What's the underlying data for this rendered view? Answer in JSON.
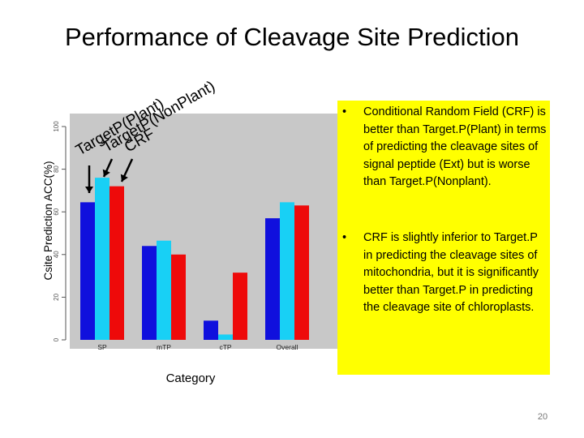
{
  "slide": {
    "title": "Performance of Cleavage Site Prediction",
    "page_number": "20",
    "bullet_marker": "•",
    "bullets": [
      "Conditional Random Field (CRF) is better than Target.P(Plant) in terms of predicting the cleavage sites of signal peptide (Ext) but is worse than Target.P(Nonplant).",
      "CRF is slightly inferior to Target.P in predicting the cleavage sites of mitochondria, but it is significantly better than Target.P in predicting the cleavage site of chloroplasts."
    ],
    "note_box_color": "#ffff00"
  },
  "chart_data": {
    "type": "bar",
    "xlabel": "Category",
    "ylabel": "Csite Prediction ACC(%)",
    "ylim": [
      0,
      100
    ],
    "yticks": [
      0,
      20,
      40,
      60,
      80,
      100
    ],
    "categories": [
      "SP",
      "mTP",
      "cTP",
      "Overall"
    ],
    "series": [
      {
        "name": "TargetP(Plant)",
        "color": "#1010dd",
        "values": [
          64.5,
          44,
          9,
          57
        ]
      },
      {
        "name": "TargetP(NonPlant)",
        "color": "#18d0f5",
        "values": [
          76,
          46.5,
          2.5,
          64.5
        ]
      },
      {
        "name": "CRF",
        "color": "#ee0a0a",
        "values": [
          72,
          40,
          31.5,
          63
        ]
      }
    ],
    "background": "#c8c8c8",
    "grid": false,
    "annotations": {
      "arrows_point_to": "SP bars",
      "label_rotation_deg": -30
    }
  }
}
